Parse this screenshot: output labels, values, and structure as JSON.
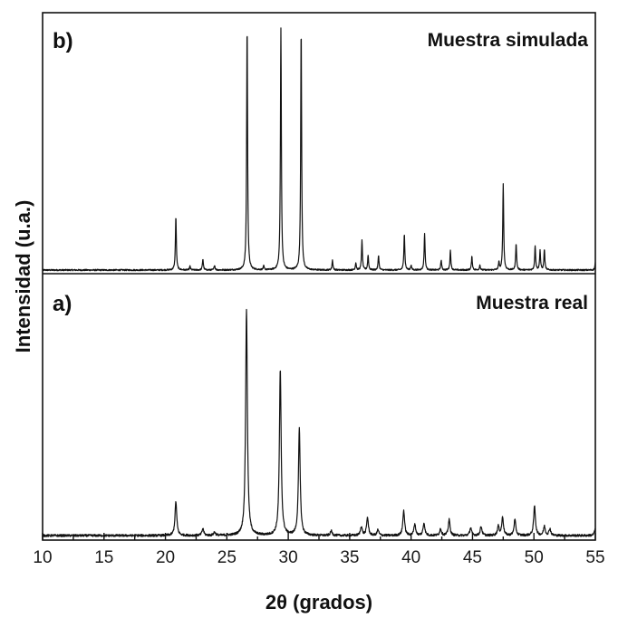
{
  "chart_data": {
    "type": "line",
    "xlabel": "2θ (grados)",
    "ylabel": "Intensidad (u.a.)",
    "xlim": [
      10,
      55
    ],
    "x_ticks": [
      "10",
      "15",
      "20",
      "25",
      "30",
      "35",
      "40",
      "45",
      "50",
      "55"
    ],
    "grid": false,
    "panels": [
      {
        "id": "b",
        "panel_label": "b)",
        "title": "Muestra simulada",
        "peaks": [
          {
            "x": 20.85,
            "y": 22
          },
          {
            "x": 22.0,
            "y": 1.5
          },
          {
            "x": 23.05,
            "y": 4.5
          },
          {
            "x": 24.0,
            "y": 2
          },
          {
            "x": 26.65,
            "y": 100
          },
          {
            "x": 28.0,
            "y": 1.5
          },
          {
            "x": 29.4,
            "y": 99
          },
          {
            "x": 31.05,
            "y": 99
          },
          {
            "x": 33.6,
            "y": 4
          },
          {
            "x": 35.5,
            "y": 3
          },
          {
            "x": 36.0,
            "y": 12
          },
          {
            "x": 36.5,
            "y": 6
          },
          {
            "x": 37.35,
            "y": 6
          },
          {
            "x": 39.45,
            "y": 15
          },
          {
            "x": 40.0,
            "y": 2
          },
          {
            "x": 41.1,
            "y": 15
          },
          {
            "x": 42.45,
            "y": 4
          },
          {
            "x": 43.2,
            "y": 8
          },
          {
            "x": 44.95,
            "y": 5.5
          },
          {
            "x": 45.6,
            "y": 2
          },
          {
            "x": 47.15,
            "y": 3
          },
          {
            "x": 47.5,
            "y": 35
          },
          {
            "x": 48.55,
            "y": 11
          },
          {
            "x": 50.1,
            "y": 10
          },
          {
            "x": 50.5,
            "y": 8
          },
          {
            "x": 50.85,
            "y": 8.5
          },
          {
            "x": 55.0,
            "y": 3
          }
        ]
      },
      {
        "id": "a",
        "panel_label": "a)",
        "title": "Muestra real",
        "peaks": [
          {
            "x": 20.85,
            "y": 15
          },
          {
            "x": 23.05,
            "y": 3
          },
          {
            "x": 24.0,
            "y": 1.5
          },
          {
            "x": 26.6,
            "y": 100
          },
          {
            "x": 29.35,
            "y": 73
          },
          {
            "x": 30.9,
            "y": 47
          },
          {
            "x": 33.5,
            "y": 2
          },
          {
            "x": 35.95,
            "y": 4
          },
          {
            "x": 36.45,
            "y": 8
          },
          {
            "x": 37.3,
            "y": 2.5
          },
          {
            "x": 39.4,
            "y": 11
          },
          {
            "x": 40.3,
            "y": 5
          },
          {
            "x": 41.05,
            "y": 5.5
          },
          {
            "x": 42.4,
            "y": 3
          },
          {
            "x": 43.1,
            "y": 7
          },
          {
            "x": 44.85,
            "y": 3.5
          },
          {
            "x": 45.7,
            "y": 4
          },
          {
            "x": 47.1,
            "y": 4
          },
          {
            "x": 47.45,
            "y": 8
          },
          {
            "x": 48.45,
            "y": 7
          },
          {
            "x": 50.05,
            "y": 13
          },
          {
            "x": 50.85,
            "y": 4
          },
          {
            "x": 51.3,
            "y": 3
          },
          {
            "x": 55.0,
            "y": 3
          }
        ]
      }
    ],
    "colors": {
      "line": "#111111",
      "axis": "#111111"
    }
  }
}
